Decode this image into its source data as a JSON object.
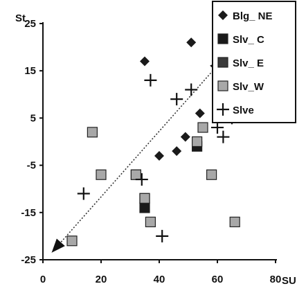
{
  "chart_data": {
    "type": "scatter",
    "xlabel": "SU",
    "ylabel": "St",
    "xlim": [
      0,
      80
    ],
    "ylim": [
      -25,
      25
    ],
    "xticks": [
      "0",
      "20",
      "40",
      "60",
      "80"
    ],
    "yticks": [
      "25",
      "15",
      "5",
      "-5",
      "-15",
      "-25"
    ],
    "grid": false,
    "legend_position": "top-right",
    "series": [
      {
        "name": "Blg_ NE",
        "marker": "diamond",
        "color": "#1a1a1a",
        "points": [
          [
            35,
            17
          ],
          [
            51,
            21
          ],
          [
            54,
            6
          ],
          [
            53,
            0
          ],
          [
            49,
            1
          ],
          [
            46,
            -2
          ],
          [
            40,
            -3
          ]
        ]
      },
      {
        "name": "Slv_ C",
        "marker": "square",
        "color": "#1a1a1a",
        "points": [
          [
            53,
            -1
          ],
          [
            35,
            -14
          ]
        ]
      },
      {
        "name": "Slv_ E",
        "marker": "square",
        "color": "#3a3a3a",
        "points": [
          [
            32,
            -7
          ],
          [
            35,
            -12
          ]
        ]
      },
      {
        "name": "Slv_W",
        "marker": "square",
        "color": "#a8a8a8",
        "points": [
          [
            17,
            2
          ],
          [
            20,
            -7
          ],
          [
            32,
            -7
          ],
          [
            35,
            -12
          ],
          [
            37,
            -17
          ],
          [
            55,
            3
          ],
          [
            58,
            -7
          ],
          [
            66,
            -17
          ],
          [
            10,
            -21
          ],
          [
            53,
            0
          ]
        ]
      },
      {
        "name": "Slve",
        "marker": "plus",
        "color": "#111111",
        "points": [
          [
            37,
            13
          ],
          [
            46,
            9
          ],
          [
            51,
            11
          ],
          [
            60,
            3
          ],
          [
            62,
            1
          ],
          [
            65,
            5
          ],
          [
            14,
            -11
          ],
          [
            34,
            -8
          ],
          [
            41,
            -20
          ]
        ]
      }
    ],
    "arrow": {
      "from": [
        62,
        17.5
      ],
      "to": [
        3,
        -23.5
      ],
      "style": "dotted",
      "heads": "both"
    }
  }
}
